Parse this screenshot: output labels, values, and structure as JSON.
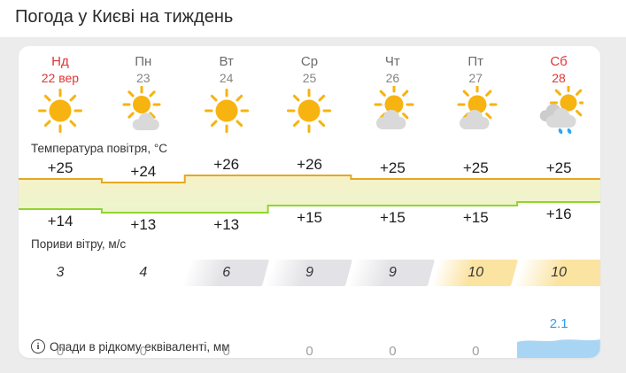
{
  "title": "Погода у Києві на тиждень",
  "days": [
    {
      "name": "Нд",
      "date": "22 вер",
      "weekend": true,
      "icon": "sun"
    },
    {
      "name": "Пн",
      "date": "23",
      "weekend": false,
      "icon": "sun-cloud-small"
    },
    {
      "name": "Вт",
      "date": "24",
      "weekend": false,
      "icon": "sun"
    },
    {
      "name": "Ср",
      "date": "25",
      "weekend": false,
      "icon": "sun"
    },
    {
      "name": "Чт",
      "date": "26",
      "weekend": false,
      "icon": "sun-cloud"
    },
    {
      "name": "Пт",
      "date": "27",
      "weekend": false,
      "icon": "sun-cloud"
    },
    {
      "name": "Сб",
      "date": "28",
      "weekend": true,
      "icon": "sun-cloud-rain"
    }
  ],
  "temperature": {
    "label": "Температура повітря, °C",
    "high": [
      "+25",
      "+24",
      "+26",
      "+26",
      "+25",
      "+25",
      "+25"
    ],
    "low": [
      "+14",
      "+13",
      "+13",
      "+15",
      "+15",
      "+15",
      "+16"
    ]
  },
  "wind": {
    "label": "Пориви вітру, м/с",
    "values": [
      "3",
      "4",
      "6",
      "9",
      "9",
      "10",
      "10"
    ],
    "levels": [
      "none",
      "none",
      "gray",
      "gray",
      "gray",
      "yellow",
      "yellow"
    ]
  },
  "precipitation": {
    "label": "Опади в рідкому еквіваленті, мм",
    "values": [
      "0",
      "0",
      "0",
      "0",
      "0",
      "0",
      "2.1"
    ],
    "bar_index": 6,
    "bar_value": "2.1"
  },
  "colors": {
    "weekend_red": "#e13535",
    "sun": "#f7b310",
    "cloud": "#d9d9d9",
    "cloud_back": "#cccccc",
    "rain_drop": "#2ba7f3",
    "band_top_line": "#e7a81f",
    "band_bottom_line": "#93d430",
    "band_fill_top": "#f6f2c8",
    "band_fill_bottom": "#ecf4cd",
    "wind_gray": "#e3e3e7",
    "wind_yellow": "#fbe3a1",
    "precip_bar": "#a9d5f5",
    "precip_value": "#2f9ff0"
  }
}
